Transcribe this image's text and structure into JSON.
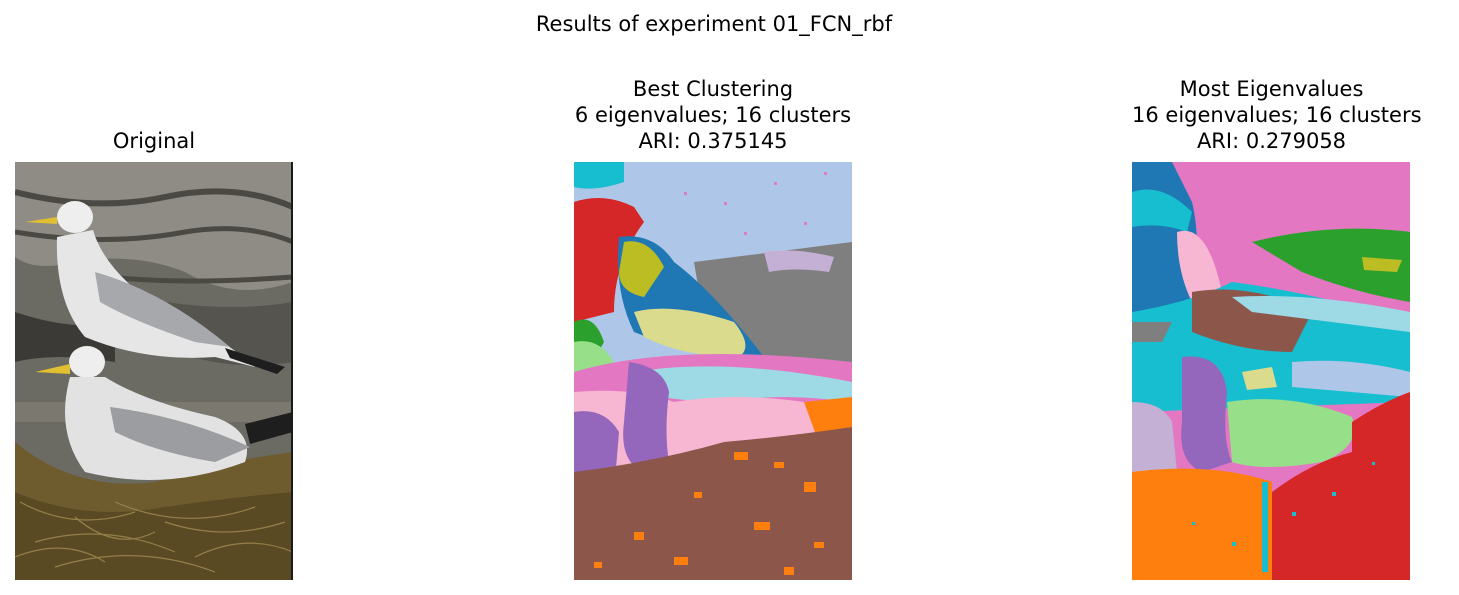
{
  "figure": {
    "suptitle": "Results of experiment 01_FCN_rbf",
    "panels": [
      {
        "title_lines": [
          "Original"
        ]
      },
      {
        "title_lines": [
          "Best Clustering",
          "6 eigenvalues; 16 clusters",
          "ARI: 0.375145"
        ]
      },
      {
        "title_lines": [
          "Most Eigenvalues",
          "16 eigenvalues; 16 clusters",
          "ARI: 0.279058"
        ]
      }
    ]
  },
  "colors": {
    "tab_blue": "#1f77b4",
    "tab_orange": "#ff7f0e",
    "tab_green": "#2ca02c",
    "tab_red": "#d62728",
    "tab_purple": "#9467bd",
    "tab_brown": "#8c564b",
    "tab_pink": "#e377c2",
    "tab_gray": "#7f7f7f",
    "tab_olive": "#bcbd22",
    "tab_cyan": "#17becf",
    "light_blue": "#aec7e8",
    "light_green": "#98df8a",
    "light_pink": "#f7b6d2",
    "light_olive": "#dbdb8d",
    "light_cyan": "#9edae5",
    "light_purple": "#c5b0d5"
  }
}
